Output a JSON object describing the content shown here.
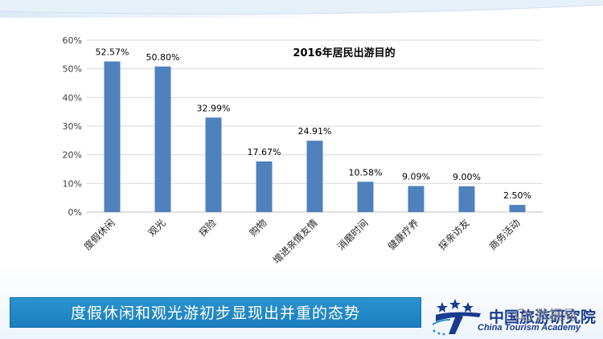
{
  "colors": {
    "bar": "#4f81bd",
    "banner": "#1f86c6",
    "logo": "#1a3b8c"
  },
  "chart_data": {
    "type": "bar",
    "title": "2016年居民出游目的",
    "categories": [
      "度假休闲",
      "观光",
      "探险",
      "购物",
      "增进亲情友情",
      "消磨时间",
      "健康疗养",
      "探亲访友",
      "商务活动"
    ],
    "values": [
      52.57,
      50.8,
      32.99,
      17.67,
      24.91,
      10.58,
      9.09,
      9.0,
      2.5
    ],
    "data_labels": [
      "52.57%",
      "50.80%",
      "32.99%",
      "17.67%",
      "24.91%",
      "10.58%",
      "9.09%",
      "9.00%",
      "2.50%"
    ],
    "ylim": [
      0,
      60
    ],
    "yticks": [
      0,
      10,
      20,
      30,
      40,
      50,
      60
    ],
    "ytick_labels": [
      "0%",
      "10%",
      "20%",
      "30%",
      "40%",
      "50%",
      "60%"
    ],
    "grid": true,
    "legend": "none",
    "xlabel": "",
    "ylabel": ""
  },
  "banner": {
    "text": "度假休闲和观光游初步显现出并重的态势"
  },
  "logo": {
    "cn": "中国旅游研究院",
    "en": "China Tourism Academy",
    "watermark": "数据局"
  }
}
